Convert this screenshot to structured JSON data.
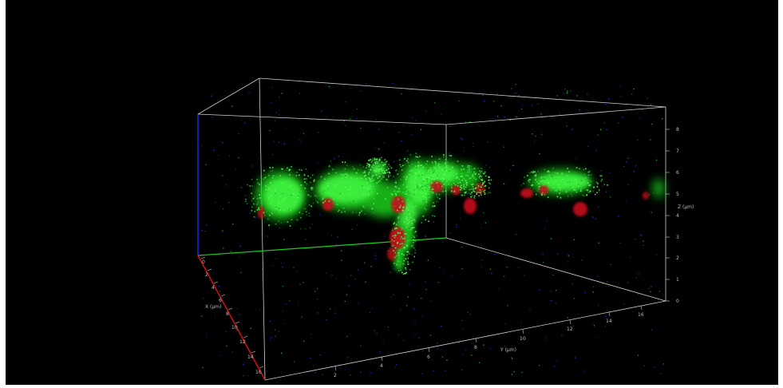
{
  "viewer": {
    "background": "#000000",
    "box_color": "#cfcfcf",
    "axis_colors": {
      "x": "#e01010",
      "y": "#18d018",
      "z": "#1a2bff"
    },
    "channel_colors": {
      "membrane": "#22e822",
      "nuclei": "#c8101a",
      "background_spots": "#2f3dff"
    }
  },
  "axes": {
    "z": {
      "label": "Z (µm)",
      "ticks": [
        "0",
        "1",
        "2",
        "3",
        "4",
        "5",
        "6",
        "7",
        "8"
      ]
    },
    "y": {
      "label": "Y (µm)",
      "ticks": [
        "2",
        "4",
        "6",
        "8",
        "10",
        "12",
        "14",
        "16"
      ]
    },
    "x": {
      "label": "X (µm)",
      "ticks": [
        "0",
        "2",
        "4",
        "6",
        "8",
        "10",
        "12",
        "14",
        "16"
      ]
    }
  }
}
